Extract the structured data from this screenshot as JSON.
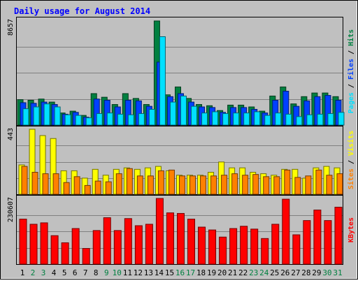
{
  "title": "Daily usage for August 2014",
  "colors": {
    "background": "#c0c0c0",
    "title": "#0000ff",
    "hits": "#008040",
    "files": "#0040ff",
    "pages": "#00e0ff",
    "visits": "#ffff00",
    "sites": "#ff8000",
    "kbytes": "#ff0000",
    "weekday_label": "#000000",
    "weekend_label": "#008040"
  },
  "chart_data": [
    {
      "type": "bar",
      "panel": "hits-files-pages",
      "ymax_label": "8657",
      "ylim": [
        0,
        8657
      ],
      "legend": {
        "pages": "Pages",
        "files": "Files",
        "hits": "Hits",
        "sep1": " / ",
        "sep2": " / "
      },
      "categories": [
        "1",
        "2",
        "3",
        "4",
        "5",
        "6",
        "7",
        "8",
        "9",
        "10",
        "11",
        "12",
        "13",
        "14",
        "15",
        "16",
        "17",
        "18",
        "19",
        "20",
        "21",
        "22",
        "23",
        "24",
        "25",
        "26",
        "27",
        "28",
        "29",
        "30",
        "31"
      ],
      "series": [
        {
          "name": "Hits",
          "values": [
            2100,
            2050,
            2150,
            1900,
            1000,
            1150,
            800,
            2600,
            2300,
            1700,
            2600,
            2200,
            1700,
            8600,
            2500,
            3150,
            2200,
            1700,
            1600,
            1200,
            1650,
            1650,
            1500,
            1150,
            2400,
            3150,
            1750,
            2350,
            2650,
            2650,
            2350
          ]
        },
        {
          "name": "Files",
          "values": [
            1850,
            1800,
            1900,
            1700,
            900,
            1050,
            650,
            2150,
            2050,
            1500,
            2050,
            2000,
            1550,
            5200,
            2350,
            2600,
            1900,
            1500,
            1450,
            1050,
            1450,
            1450,
            1300,
            1000,
            2050,
            2800,
            1550,
            2000,
            2350,
            2450,
            2050
          ]
        },
        {
          "name": "Pages",
          "values": [
            1350,
            1500,
            1750,
            1500,
            850,
            800,
            600,
            950,
            1000,
            900,
            850,
            950,
            1300,
            7300,
            1900,
            2400,
            1550,
            1000,
            1100,
            950,
            1000,
            1000,
            1100,
            800,
            1000,
            900,
            700,
            850,
            900,
            950,
            1050
          ]
        }
      ]
    },
    {
      "type": "bar",
      "panel": "visits-sites",
      "ymax_label": "443",
      "ylim": [
        0,
        443
      ],
      "legend": {
        "sites": "Sites",
        "visits": "Visits",
        "sep": " / "
      },
      "categories": [
        "1",
        "2",
        "3",
        "4",
        "5",
        "6",
        "7",
        "8",
        "9",
        "10",
        "11",
        "12",
        "13",
        "14",
        "15",
        "16",
        "17",
        "18",
        "19",
        "20",
        "21",
        "22",
        "23",
        "24",
        "25",
        "26",
        "27",
        "28",
        "29",
        "30",
        "31"
      ],
      "series": [
        {
          "name": "Visits",
          "values": [
            200,
            443,
            400,
            380,
            160,
            160,
            110,
            170,
            130,
            170,
            180,
            170,
            180,
            190,
            160,
            130,
            130,
            130,
            150,
            220,
            180,
            180,
            150,
            140,
            130,
            170,
            170,
            110,
            180,
            190,
            180
          ]
        },
        {
          "name": "Sites",
          "values": [
            190,
            150,
            140,
            140,
            80,
            120,
            60,
            90,
            85,
            140,
            175,
            125,
            125,
            160,
            165,
            125,
            125,
            125,
            125,
            130,
            140,
            130,
            135,
            120,
            120,
            165,
            115,
            125,
            165,
            130,
            140
          ]
        }
      ]
    },
    {
      "type": "bar",
      "panel": "kbytes",
      "ymax_label": "230607",
      "ylim": [
        0,
        230607
      ],
      "legend": {
        "kbytes": "KBytes"
      },
      "categories": [
        "1",
        "2",
        "3",
        "4",
        "5",
        "6",
        "7",
        "8",
        "9",
        "10",
        "11",
        "12",
        "13",
        "14",
        "15",
        "16",
        "17",
        "18",
        "19",
        "20",
        "21",
        "22",
        "23",
        "24",
        "25",
        "26",
        "27",
        "28",
        "29",
        "30",
        "31"
      ],
      "series": [
        {
          "name": "KBytes",
          "values": [
            158000,
            140000,
            145000,
            100000,
            75000,
            125000,
            55000,
            118000,
            163000,
            118000,
            160000,
            135000,
            140000,
            230607,
            180000,
            178000,
            158000,
            130000,
            120000,
            95000,
            125000,
            133000,
            123000,
            90000,
            140000,
            228000,
            103000,
            153000,
            190000,
            153000,
            200000
          ]
        }
      ]
    }
  ],
  "x_labels": [
    "1",
    "2",
    "3",
    "4",
    "5",
    "6",
    "7",
    "8",
    "9",
    "10",
    "11",
    "12",
    "13",
    "14",
    "15",
    "16",
    "17",
    "18",
    "19",
    "20",
    "21",
    "22",
    "23",
    "24",
    "25",
    "26",
    "27",
    "28",
    "29",
    "30",
    "31"
  ],
  "weekend_days": [
    2,
    3,
    9,
    10,
    16,
    17,
    23,
    24,
    30,
    31
  ]
}
